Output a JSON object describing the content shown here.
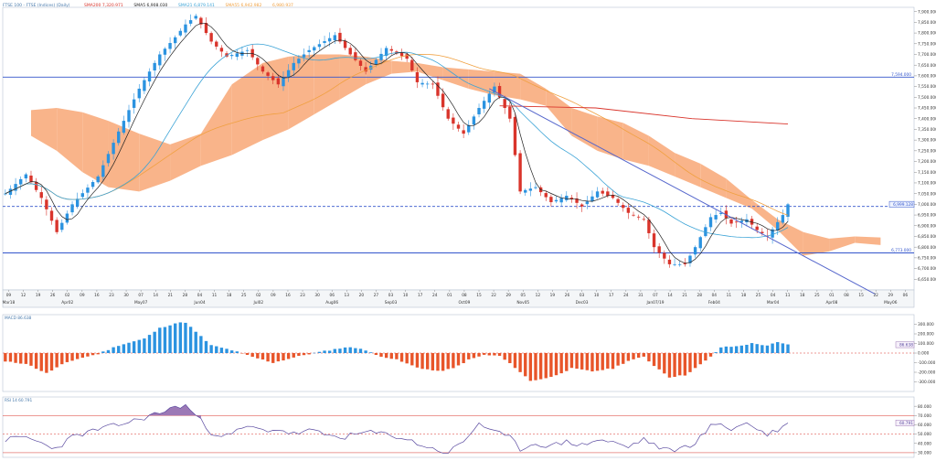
{
  "header": {
    "title": "FTSE 100 - FTSE (Indices) (Daily)",
    "legend": [
      {
        "text": "SMA200 7,320.971",
        "color": "#d9342b"
      },
      {
        "text": "SMA5 6,908.030",
        "color": "#222222"
      },
      {
        "text": "SMA21 6,879.141",
        "color": "#3ba3d6"
      },
      {
        "text": "SMA55 6,942.982",
        "color": "#f0a040"
      },
      {
        "text": "6,980.937",
        "color": "#f0a040"
      }
    ]
  },
  "colors": {
    "up": "#2b93e0",
    "down": "#d9342b",
    "cloud_bull": "#f9b48a",
    "cloud_bear": "#8c8c8c",
    "sma200": "#d9342b",
    "sma21": "#3ba3d6",
    "sma55": "#f0a040",
    "sma5": "#222222",
    "hline": "#3355cc",
    "trend": "#5566cc",
    "macd_pos": "#2b93e0",
    "macd_neg": "#e8552a",
    "rsi": "#5a4aa0",
    "rsi_fill": "#9c79b6"
  },
  "chart_data": [
    {
      "type": "candlestick",
      "pane": "price",
      "ylim": [
        6600,
        7920
      ],
      "y_ticks": [
        "7,900.000",
        "7,850.000",
        "7,800.000",
        "7,750.000",
        "7,700.000",
        "7,650.000",
        "7,600.000",
        "7,550.000",
        "7,500.000",
        "7,450.000",
        "7,400.000",
        "7,350.000",
        "7,300.000",
        "7,250.000",
        "7,200.000",
        "7,150.000",
        "7,100.000",
        "7,050.000",
        "7,000.000",
        "6,950.000",
        "6,900.000",
        "6,850.000",
        "6,800.000",
        "6,750.000",
        "6,700.000",
        "6,650.000"
      ],
      "x_ticks": [
        "09",
        "12",
        "19",
        "26",
        "02",
        "09",
        "16",
        "23",
        "30",
        "07",
        "14",
        "21",
        "28",
        "04",
        "11",
        "18",
        "25",
        "02",
        "09",
        "16",
        "23",
        "30",
        "06",
        "13",
        "20",
        "27",
        "03",
        "10",
        "17",
        "24",
        "01",
        "08",
        "15",
        "22",
        "29",
        "05",
        "12",
        "19",
        "26",
        "03",
        "10",
        "17",
        "24",
        "31",
        "07",
        "14",
        "21",
        "28",
        "04",
        "11",
        "18",
        "25",
        "04",
        "11",
        "18",
        "25",
        "01",
        "08",
        "15",
        "22",
        "29",
        "06"
      ],
      "x_month_labels": [
        "Mar18",
        "Apr02",
        "May07",
        "Jun04",
        "Jul02",
        "Aug06",
        "Sep03",
        "Oct09",
        "Nov05",
        "Dec03",
        "Jan07/19",
        "Feb04",
        "Mar04",
        "Apr08",
        "May06"
      ],
      "price_segments": [
        [
          0,
          7050
        ],
        [
          4,
          7140
        ],
        [
          7,
          7030
        ],
        [
          10,
          6870
        ],
        [
          13,
          7000
        ],
        [
          18,
          7130
        ],
        [
          22,
          7340
        ],
        [
          26,
          7540
        ],
        [
          30,
          7700
        ],
        [
          33,
          7780
        ],
        [
          35,
          7840
        ],
        [
          37,
          7880
        ],
        [
          40,
          7760
        ],
        [
          43,
          7690
        ],
        [
          47,
          7720
        ],
        [
          50,
          7620
        ],
        [
          53,
          7560
        ],
        [
          56,
          7660
        ],
        [
          59,
          7720
        ],
        [
          64,
          7790
        ],
        [
          67,
          7700
        ],
        [
          70,
          7620
        ],
        [
          74,
          7730
        ],
        [
          78,
          7680
        ],
        [
          80,
          7570
        ],
        [
          83,
          7560
        ],
        [
          86,
          7400
        ],
        [
          89,
          7330
        ],
        [
          92,
          7450
        ],
        [
          95,
          7550
        ],
        [
          98,
          7400
        ],
        [
          100,
          7060
        ],
        [
          103,
          7080
        ],
        [
          106,
          7010
        ],
        [
          109,
          7040
        ],
        [
          112,
          6990
        ],
        [
          115,
          7060
        ],
        [
          118,
          7030
        ],
        [
          121,
          6960
        ],
        [
          124,
          6930
        ],
        [
          126,
          6800
        ],
        [
          129,
          6720
        ],
        [
          132,
          6720
        ],
        [
          134,
          6800
        ],
        [
          137,
          6940
        ],
        [
          139,
          6960
        ],
        [
          141,
          6910
        ],
        [
          144,
          6930
        ],
        [
          146,
          6880
        ],
        [
          148,
          6850
        ],
        [
          151,
          6950
        ],
        [
          152,
          7000
        ]
      ],
      "candle_count": 153,
      "candle_seed": 7,
      "sma5_period": 5,
      "sma21_period": 21,
      "sma55_period": 55,
      "sma200": {
        "from": 0,
        "to": 152,
        "y": [
          7460,
          7450,
          7400,
          7375
        ]
      },
      "ichimoku_cloud": {
        "x": [
          5,
          10,
          15,
          20,
          26,
          32,
          38,
          44,
          50,
          55,
          60,
          65,
          70,
          75,
          80,
          85,
          90,
          95,
          100,
          105,
          110,
          115,
          120,
          125,
          130,
          135,
          140,
          145,
          150,
          155,
          160,
          165,
          170
        ],
        "span_a": [
          7440,
          7450,
          7430,
          7390,
          7330,
          7280,
          7330,
          7560,
          7660,
          7690,
          7700,
          7700,
          7690,
          7670,
          7660,
          7640,
          7630,
          7620,
          7610,
          7540,
          7450,
          7410,
          7380,
          7320,
          7240,
          7190,
          7120,
          7020,
          6930,
          6870,
          6840,
          6850,
          6845
        ],
        "span_b": [
          7320,
          7250,
          7150,
          7080,
          7060,
          7110,
          7180,
          7230,
          7300,
          7350,
          7420,
          7490,
          7560,
          7610,
          7620,
          7580,
          7540,
          7510,
          7490,
          7460,
          7320,
          7250,
          7210,
          7180,
          7130,
          7080,
          7030,
          6980,
          6880,
          6760,
          6780,
          6820,
          6810
        ]
      },
      "hlines": [
        {
          "value": 7594.0,
          "label": "7,594.000"
        },
        {
          "value": 6990.0,
          "label": "6,990.000",
          "dashed": true
        },
        {
          "value": 6773.0,
          "label": "6,773.000"
        }
      ],
      "trendline": {
        "from": [
          94,
          7540
        ],
        "to": [
          169,
          6580
        ]
      },
      "last_price_label": "6,999.128"
    },
    {
      "type": "bar",
      "pane": "macd",
      "ylim": [
        -400,
        400
      ],
      "y_ticks": [
        "300.000",
        "200.000",
        "100.000",
        "0.000",
        "-100.000",
        "-200.000",
        "-300.000"
      ],
      "label": "MACD 86.638",
      "value_label": "86.638",
      "segments": [
        [
          0,
          -90
        ],
        [
          4,
          -110
        ],
        [
          8,
          -210
        ],
        [
          11,
          -120
        ],
        [
          14,
          -60
        ],
        [
          18,
          -10
        ],
        [
          22,
          80
        ],
        [
          27,
          150
        ],
        [
          30,
          260
        ],
        [
          33,
          310
        ],
        [
          35,
          320
        ],
        [
          37,
          220
        ],
        [
          40,
          80
        ],
        [
          44,
          30
        ],
        [
          48,
          -40
        ],
        [
          52,
          -100
        ],
        [
          55,
          -60
        ],
        [
          58,
          -20
        ],
        [
          62,
          20
        ],
        [
          66,
          60
        ],
        [
          69,
          50
        ],
        [
          72,
          -20
        ],
        [
          76,
          -70
        ],
        [
          80,
          -150
        ],
        [
          84,
          -190
        ],
        [
          87,
          -160
        ],
        [
          90,
          -70
        ],
        [
          93,
          -20
        ],
        [
          96,
          -30
        ],
        [
          99,
          -150
        ],
        [
          102,
          -290
        ],
        [
          106,
          -250
        ],
        [
          110,
          -160
        ],
        [
          114,
          -190
        ],
        [
          118,
          -160
        ],
        [
          121,
          -80
        ],
        [
          124,
          -40
        ],
        [
          126,
          -130
        ],
        [
          129,
          -250
        ],
        [
          132,
          -230
        ],
        [
          135,
          -120
        ],
        [
          137,
          -40
        ],
        [
          139,
          60
        ],
        [
          142,
          70
        ],
        [
          145,
          100
        ],
        [
          148,
          80
        ],
        [
          150,
          110
        ],
        [
          152,
          86.6
        ]
      ]
    },
    {
      "type": "line",
      "pane": "rsi",
      "ylim": [
        25,
        90
      ],
      "y_ticks": [
        "80.000",
        "70.000",
        "60.000",
        "50.000",
        "40.000",
        "30.000"
      ],
      "label": "RSI 14 60.791",
      "value_label": "60.791",
      "levels": [
        30,
        50,
        70
      ],
      "segments": [
        [
          0,
          44
        ],
        [
          4,
          47
        ],
        [
          7,
          40
        ],
        [
          10,
          35
        ],
        [
          13,
          47
        ],
        [
          18,
          55
        ],
        [
          22,
          60
        ],
        [
          26,
          66
        ],
        [
          30,
          73
        ],
        [
          33,
          79
        ],
        [
          35,
          81
        ],
        [
          37,
          70
        ],
        [
          40,
          52
        ],
        [
          43,
          48
        ],
        [
          47,
          58
        ],
        [
          50,
          54
        ],
        [
          53,
          55
        ],
        [
          56,
          50
        ],
        [
          59,
          54
        ],
        [
          63,
          48
        ],
        [
          66,
          47
        ],
        [
          70,
          52
        ],
        [
          74,
          50
        ],
        [
          77,
          46
        ],
        [
          80,
          40
        ],
        [
          83,
          34
        ],
        [
          86,
          30
        ],
        [
          89,
          42
        ],
        [
          92,
          62
        ],
        [
          95,
          52
        ],
        [
          98,
          46
        ],
        [
          100,
          34
        ],
        [
          103,
          40
        ],
        [
          106,
          37
        ],
        [
          109,
          42
        ],
        [
          112,
          38
        ],
        [
          115,
          44
        ],
        [
          118,
          41
        ],
        [
          121,
          36
        ],
        [
          124,
          45
        ],
        [
          126,
          38
        ],
        [
          129,
          32
        ],
        [
          132,
          36
        ],
        [
          134,
          41
        ],
        [
          137,
          58
        ],
        [
          139,
          62
        ],
        [
          141,
          55
        ],
        [
          144,
          62
        ],
        [
          146,
          56
        ],
        [
          148,
          49
        ],
        [
          151,
          58
        ],
        [
          152,
          61
        ]
      ]
    }
  ]
}
